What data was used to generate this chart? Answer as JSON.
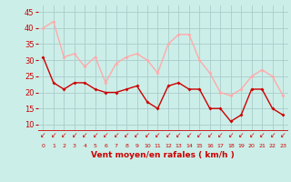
{
  "hours": [
    0,
    1,
    2,
    3,
    4,
    5,
    6,
    7,
    8,
    9,
    10,
    11,
    12,
    13,
    14,
    15,
    16,
    17,
    18,
    19,
    20,
    21,
    22,
    23
  ],
  "avg_wind": [
    31,
    23,
    21,
    23,
    23,
    21,
    20,
    20,
    21,
    22,
    17,
    15,
    22,
    23,
    21,
    21,
    15,
    15,
    11,
    13,
    21,
    21,
    15,
    13
  ],
  "gust_wind": [
    40,
    42,
    31,
    32,
    28,
    31,
    23,
    29,
    31,
    32,
    30,
    26,
    35,
    38,
    38,
    30,
    26,
    20,
    19,
    21,
    25,
    27,
    25,
    19
  ],
  "avg_color": "#cc0000",
  "gust_color": "#ffaaaa",
  "bg_color": "#cceee8",
  "grid_color": "#aacccc",
  "xlabel": "Vent moyen/en rafales ( km/h )",
  "xlabel_color": "#cc0000",
  "tick_color": "#cc0000",
  "ylim_min": 8,
  "ylim_max": 47,
  "yticks": [
    10,
    15,
    20,
    25,
    30,
    35,
    40,
    45
  ],
  "marker": "D",
  "marker_size": 2.0,
  "line_width": 1.0
}
